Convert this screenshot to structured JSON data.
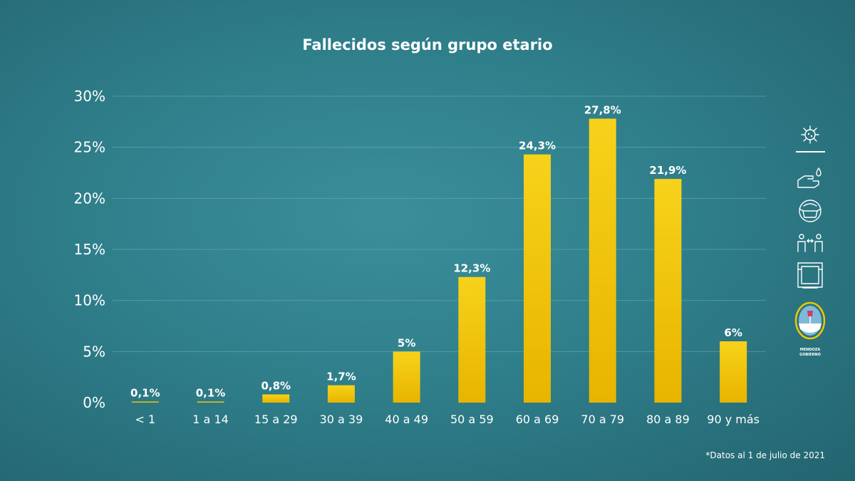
{
  "chart_data": {
    "type": "bar",
    "title": "Fallecidos según grupo etario",
    "categories": [
      "< 1",
      "1 a 14",
      "15 a 29",
      "30 a 39",
      "40 a 49",
      "50 a 59",
      "60 a 69",
      "70 a 79",
      "80 a 89",
      "90 y más"
    ],
    "values": [
      0.1,
      0.1,
      0.8,
      1.7,
      5,
      12.3,
      24.3,
      27.8,
      21.9,
      6
    ],
    "data_labels": [
      "0,1%",
      "0,1%",
      "0,8%",
      "1,7%",
      "5%",
      "12,3%",
      "24,3%",
      "27,8%",
      "21,9%",
      "6%"
    ],
    "y_ticks": [
      0,
      5,
      10,
      15,
      20,
      25,
      30
    ],
    "y_tick_labels": [
      "0%",
      "5%",
      "10%",
      "15%",
      "20%",
      "25%",
      "30%"
    ],
    "ylim": [
      0,
      30
    ],
    "grid": true,
    "bar_color": "#f2c600",
    "footnote": "*Datos al 1 de julio de 2021"
  },
  "sidebar": {
    "icons": [
      "virus-icon",
      "hand-wash-icon",
      "face-mask-icon",
      "social-distance-icon",
      "window-ventilation-icon"
    ],
    "crest": {
      "line1": "MENDOZA",
      "line2": "GOBIERNO"
    }
  },
  "colors": {
    "background": "#2f7f8b",
    "bar_top": "#f7d21a",
    "bar_bottom": "#e8b800",
    "text": "#ffffff"
  }
}
